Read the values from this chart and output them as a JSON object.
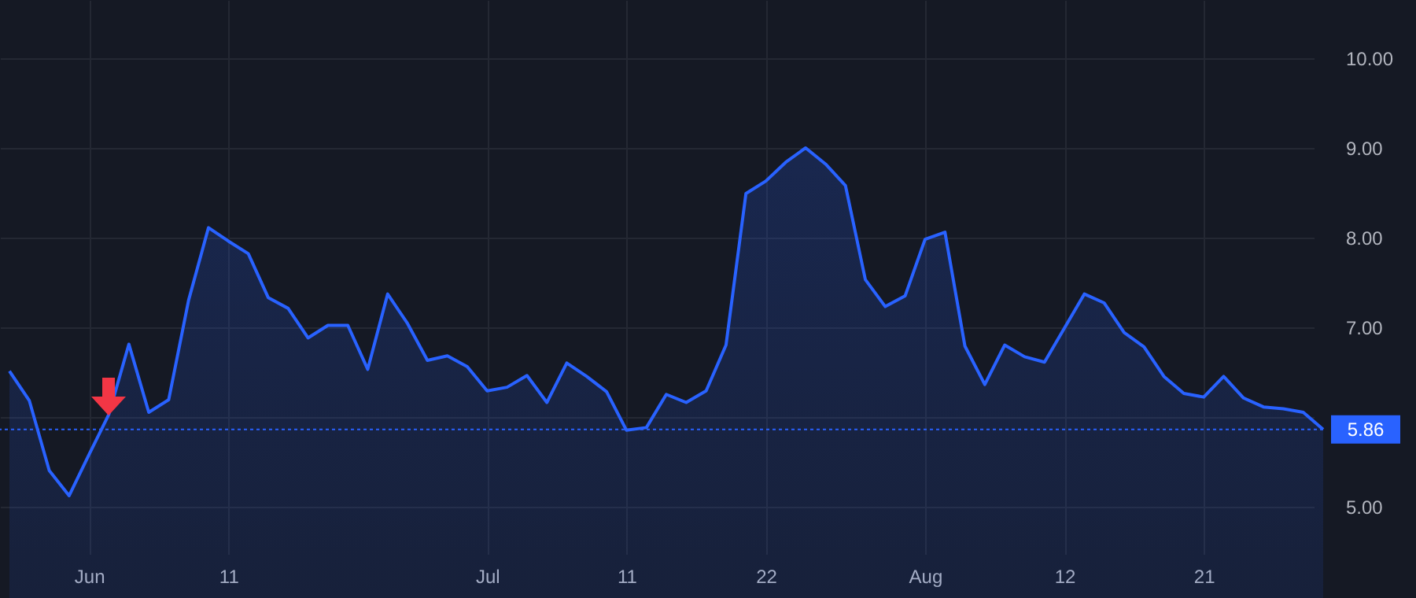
{
  "chart_data": {
    "type": "area",
    "categories": [
      null,
      null,
      null,
      null,
      "Jun",
      null,
      null,
      null,
      null,
      null,
      null,
      "11",
      null,
      null,
      null,
      null,
      null,
      null,
      null,
      null,
      null,
      null,
      null,
      null,
      "Jul",
      null,
      null,
      null,
      null,
      null,
      null,
      "11",
      null,
      null,
      null,
      null,
      null,
      null,
      "22",
      null,
      null,
      null,
      null,
      null,
      null,
      null,
      "Aug",
      null,
      null,
      null,
      null,
      null,
      null,
      "12",
      null,
      null,
      null,
      null,
      null,
      null,
      "21",
      null,
      null,
      null,
      null,
      null,
      null
    ],
    "series": [
      {
        "color": "#2962ff",
        "values": [
          6.51,
          6.18,
          5.4,
          5.12,
          5.58,
          6.03,
          6.81,
          6.05,
          6.19,
          7.3,
          8.11,
          7.96,
          7.82,
          7.33,
          7.21,
          6.88,
          7.02,
          7.02,
          6.53,
          7.37,
          7.04,
          6.63,
          6.68,
          6.56,
          6.29,
          6.33,
          6.46,
          6.16,
          6.6,
          6.45,
          6.28,
          5.85,
          5.88,
          6.25,
          6.16,
          6.29,
          6.8,
          8.49,
          8.63,
          8.84,
          9.0,
          8.82,
          8.58,
          7.53,
          7.23,
          7.35,
          7.98,
          8.06,
          6.79,
          6.36,
          6.8,
          6.67,
          6.61,
          6.99,
          7.37,
          7.27,
          6.94,
          6.78,
          6.45,
          6.26,
          6.22,
          6.45,
          6.21,
          6.11,
          6.09,
          6.05,
          5.86
        ]
      }
    ],
    "ylim": [
      4.47,
      10.65
    ],
    "yticks": [
      {
        "value": 5,
        "label": "5.00"
      },
      {
        "value": 6,
        "label": null
      },
      {
        "value": 7,
        "label": "7.00"
      },
      {
        "value": 8,
        "label": "8.00"
      },
      {
        "value": 9,
        "label": "9.00"
      },
      {
        "value": 10,
        "label": "10.00"
      }
    ],
    "ref_lines": [
      {
        "axis": "y",
        "value": 5.86,
        "label": "5.86",
        "color": "#2962ff",
        "line_style": "dotted"
      }
    ],
    "grid": true
  }
}
